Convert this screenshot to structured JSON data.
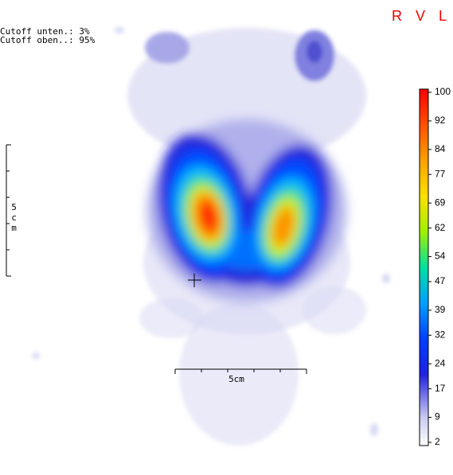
{
  "overlay": {
    "cutoff_lower": "Cutoff unten.: 3%",
    "cutoff_upper": "Cutoff oben..: 95%",
    "orientation": "R V L",
    "scale_vertical": "5cm",
    "scale_horizontal": "5cm"
  },
  "colorbar": {
    "range": [
      2,
      100
    ],
    "ticks": [
      100,
      92,
      84,
      77,
      69,
      62,
      54,
      47,
      39,
      32,
      24,
      17,
      9,
      2
    ]
  }
}
